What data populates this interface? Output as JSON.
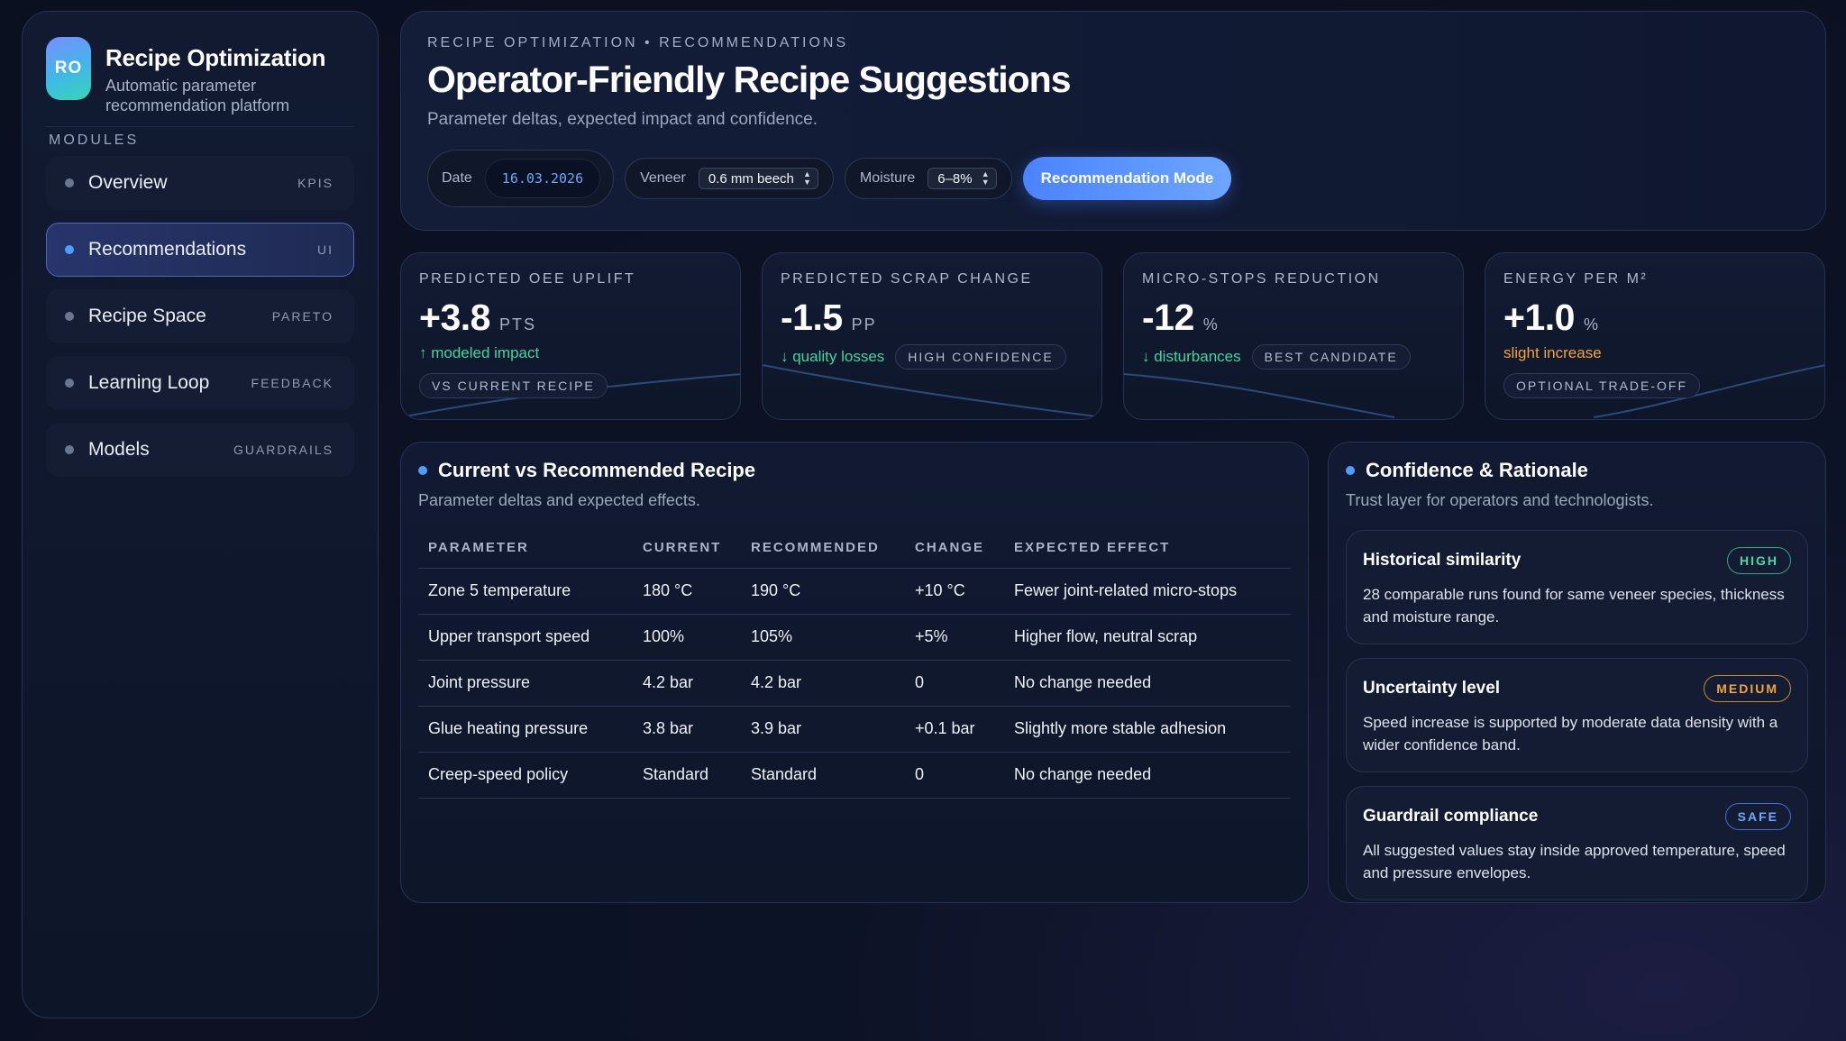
{
  "sidebar": {
    "logo": "RO",
    "title": "Recipe Optimization",
    "subtitle": "Automatic parameter recommendation platform",
    "modules_label": "MODULES",
    "items": [
      {
        "label": "Overview",
        "tag": "KPIS",
        "active": false
      },
      {
        "label": "Recommendations",
        "tag": "UI",
        "active": true
      },
      {
        "label": "Recipe Space",
        "tag": "PARETO",
        "active": false
      },
      {
        "label": "Learning Loop",
        "tag": "FEEDBACK",
        "active": false
      },
      {
        "label": "Models",
        "tag": "GUARDRAILS",
        "active": false
      }
    ]
  },
  "header": {
    "eyebrow": "RECIPE OPTIMIZATION • RECOMMENDATIONS",
    "title": "Operator-Friendly Recipe Suggestions",
    "subtitle": "Parameter deltas, expected impact and confidence.",
    "date_label": "Date",
    "date_value": "16.03.2026",
    "veneer_label": "Veneer",
    "veneer_value": "0.6 mm beech",
    "moisture_label": "Moisture",
    "moisture_value": "6–8%",
    "mode_button": "Recommendation Mode"
  },
  "kpis": [
    {
      "label": "PREDICTED OEE UPLIFT",
      "value": "+3.8",
      "unit": "PTS",
      "note": "↑ modeled impact",
      "note_color": "green",
      "chip": "VS CURRENT RECIPE",
      "chip_below": true
    },
    {
      "label": "PREDICTED SCRAP CHANGE",
      "value": "-1.5",
      "unit": "PP",
      "note": "↓ quality losses",
      "note_color": "green",
      "chip": "HIGH CONFIDENCE",
      "chip_below": false
    },
    {
      "label": "MICRO-STOPS REDUCTION",
      "value": "-12",
      "unit": "%",
      "note": "↓ disturbances",
      "note_color": "green",
      "chip": "BEST CANDIDATE",
      "chip_below": false
    },
    {
      "label": "ENERGY PER M²",
      "value": "+1.0",
      "unit": "%",
      "note": "slight increase",
      "note_color": "amber",
      "chip": "OPTIONAL TRADE-OFF",
      "chip_below": true
    }
  ],
  "recipe_table": {
    "title": "Current vs Recommended Recipe",
    "subtitle": "Parameter deltas and expected effects.",
    "columns": [
      "PARAMETER",
      "CURRENT",
      "RECOMMENDED",
      "CHANGE",
      "EXPECTED EFFECT"
    ],
    "rows": [
      [
        "Zone 5 temperature",
        "180 °C",
        "190 °C",
        "+10 °C",
        "Fewer joint-related micro-stops"
      ],
      [
        "Upper transport speed",
        "100%",
        "105%",
        "+5%",
        "Higher flow, neutral scrap"
      ],
      [
        "Joint pressure",
        "4.2 bar",
        "4.2 bar",
        "0",
        "No change needed"
      ],
      [
        "Glue heating pressure",
        "3.8 bar",
        "3.9 bar",
        "+0.1 bar",
        "Slightly more stable adhesion"
      ],
      [
        "Creep-speed policy",
        "Standard",
        "Standard",
        "0",
        "No change needed"
      ]
    ]
  },
  "confidence": {
    "title": "Confidence & Rationale",
    "subtitle": "Trust layer for operators and technologists.",
    "cards": [
      {
        "title": "Historical similarity",
        "badge": "HIGH",
        "badge_type": "high",
        "text": "28 comparable runs found for same veneer species, thickness and moisture range."
      },
      {
        "title": "Uncertainty level",
        "badge": "MEDIUM",
        "badge_type": "medium",
        "text": "Speed increase is supported by moderate data density with a wider confidence band."
      },
      {
        "title": "Guardrail compliance",
        "badge": "SAFE",
        "badge_type": "safe",
        "text": "All suggested values stay inside approved temperature, speed and pressure envelopes."
      }
    ]
  }
}
